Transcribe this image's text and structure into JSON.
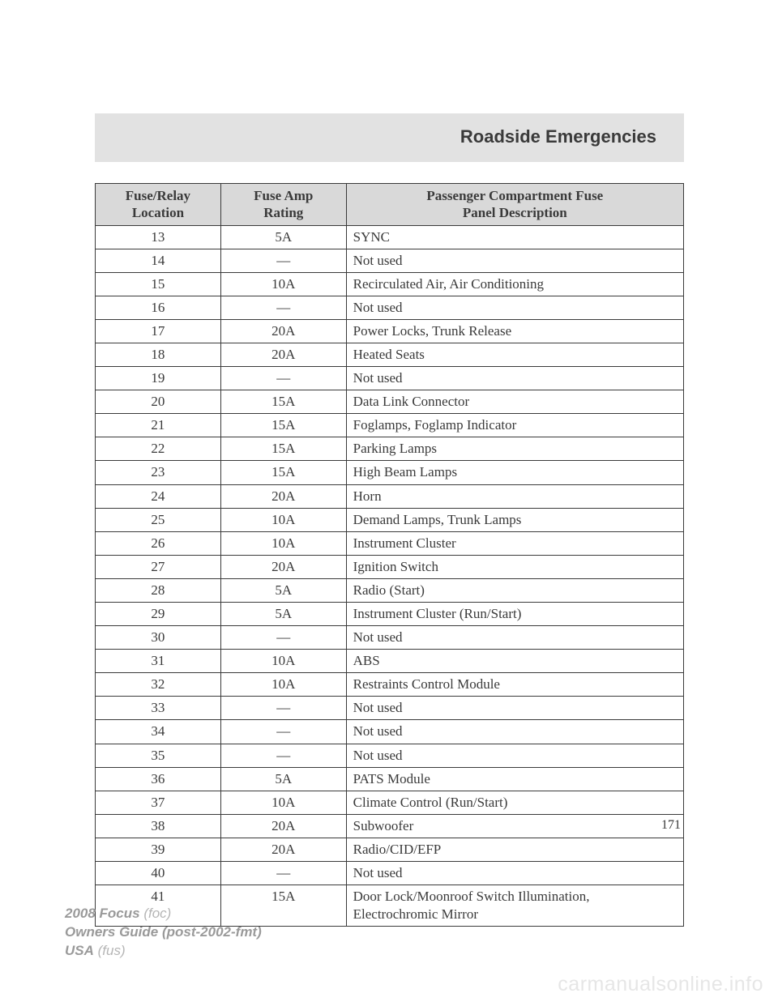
{
  "section_title": "Roadside Emergencies",
  "page_number": "171",
  "table": {
    "headers": {
      "col1_l1": "Fuse/Relay",
      "col1_l2": "Location",
      "col2_l1": "Fuse Amp",
      "col2_l2": "Rating",
      "col3_l1": "Passenger Compartment Fuse",
      "col3_l2": "Panel Description"
    },
    "col_widths": {
      "loc": 155,
      "amp": 155,
      "desc": 417
    },
    "header_bg": "#d9d9d9",
    "border_color": "#3a3a3a",
    "fontsize": 17,
    "rows": [
      {
        "loc": "13",
        "amp": "5A",
        "desc": "SYNC"
      },
      {
        "loc": "14",
        "amp": "—",
        "desc": "Not used"
      },
      {
        "loc": "15",
        "amp": "10A",
        "desc": "Recirculated Air, Air Conditioning"
      },
      {
        "loc": "16",
        "amp": "—",
        "desc": "Not used"
      },
      {
        "loc": "17",
        "amp": "20A",
        "desc": "Power Locks, Trunk Release"
      },
      {
        "loc": "18",
        "amp": "20A",
        "desc": "Heated Seats"
      },
      {
        "loc": "19",
        "amp": "—",
        "desc": "Not used"
      },
      {
        "loc": "20",
        "amp": "15A",
        "desc": "Data Link Connector"
      },
      {
        "loc": "21",
        "amp": "15A",
        "desc": "Foglamps, Foglamp Indicator"
      },
      {
        "loc": "22",
        "amp": "15A",
        "desc": "Parking Lamps"
      },
      {
        "loc": "23",
        "amp": "15A",
        "desc": "High Beam Lamps"
      },
      {
        "loc": "24",
        "amp": "20A",
        "desc": "Horn"
      },
      {
        "loc": "25",
        "amp": "10A",
        "desc": "Demand Lamps, Trunk Lamps"
      },
      {
        "loc": "26",
        "amp": "10A",
        "desc": "Instrument Cluster"
      },
      {
        "loc": "27",
        "amp": "20A",
        "desc": "Ignition Switch"
      },
      {
        "loc": "28",
        "amp": "5A",
        "desc": "Radio (Start)"
      },
      {
        "loc": "29",
        "amp": "5A",
        "desc": "Instrument Cluster (Run/Start)"
      },
      {
        "loc": "30",
        "amp": "—",
        "desc": "Not used"
      },
      {
        "loc": "31",
        "amp": "10A",
        "desc": "ABS"
      },
      {
        "loc": "32",
        "amp": "10A",
        "desc": "Restraints Control Module"
      },
      {
        "loc": "33",
        "amp": "—",
        "desc": "Not used"
      },
      {
        "loc": "34",
        "amp": "—",
        "desc": "Not used"
      },
      {
        "loc": "35",
        "amp": "—",
        "desc": "Not used"
      },
      {
        "loc": "36",
        "amp": "5A",
        "desc": "PATS Module"
      },
      {
        "loc": "37",
        "amp": "10A",
        "desc": "Climate Control (Run/Start)"
      },
      {
        "loc": "38",
        "amp": "20A",
        "desc": "Subwoofer"
      },
      {
        "loc": "39",
        "amp": "20A",
        "desc": "Radio/CID/EFP"
      },
      {
        "loc": "40",
        "amp": "—",
        "desc": "Not used"
      },
      {
        "loc": "41",
        "amp": "15A",
        "desc": "Door Lock/Moonroof Switch Illumination, Electrochromic Mirror"
      }
    ]
  },
  "footer": {
    "model_bold": "2008 Focus",
    "model_light": "(foc)",
    "guide_bold": "Owners Guide (post-2002-fmt)",
    "region_bold": "USA",
    "region_light": "(fus)"
  },
  "watermark": "carmanualsonline.info",
  "colors": {
    "band_bg": "#e2e2e2",
    "text": "#3a3a3a",
    "footer_gray": "#9a9a9a",
    "footer_light": "#b5b5b5",
    "watermark": "#e6e6e6"
  }
}
